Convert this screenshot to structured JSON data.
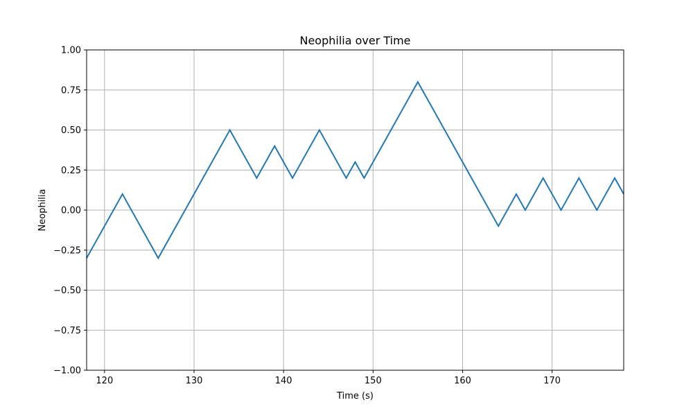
{
  "chart_data": {
    "type": "line",
    "title": "Neophilia over Time",
    "xlabel": "Time (s)",
    "ylabel": "Neophilia",
    "xlim": [
      118,
      178
    ],
    "ylim": [
      -1.0,
      1.0
    ],
    "xticks": [
      120,
      130,
      140,
      150,
      160,
      170
    ],
    "xtick_labels": [
      "120",
      "130",
      "140",
      "150",
      "160",
      "170"
    ],
    "yticks": [
      -1.0,
      -0.75,
      -0.5,
      -0.25,
      0.0,
      0.25,
      0.5,
      0.75,
      1.0
    ],
    "ytick_labels": [
      "−1.00",
      "−0.75",
      "−0.50",
      "−0.25",
      "0.00",
      "0.25",
      "0.50",
      "0.75",
      "1.00"
    ],
    "grid": true,
    "series": [
      {
        "color": "#1f77b4",
        "x": [
          118,
          122,
          126,
          134,
          137,
          139,
          141,
          144,
          147,
          148,
          149,
          155,
          164,
          166,
          167,
          169,
          171,
          173,
          175,
          177,
          178
        ],
        "y": [
          -0.3,
          0.1,
          -0.3,
          0.5,
          0.2,
          0.4,
          0.2,
          0.5,
          0.2,
          0.3,
          0.2,
          0.8,
          -0.1,
          0.1,
          0.0,
          0.2,
          0.0,
          0.2,
          0.0,
          0.2,
          0.1
        ]
      }
    ]
  }
}
